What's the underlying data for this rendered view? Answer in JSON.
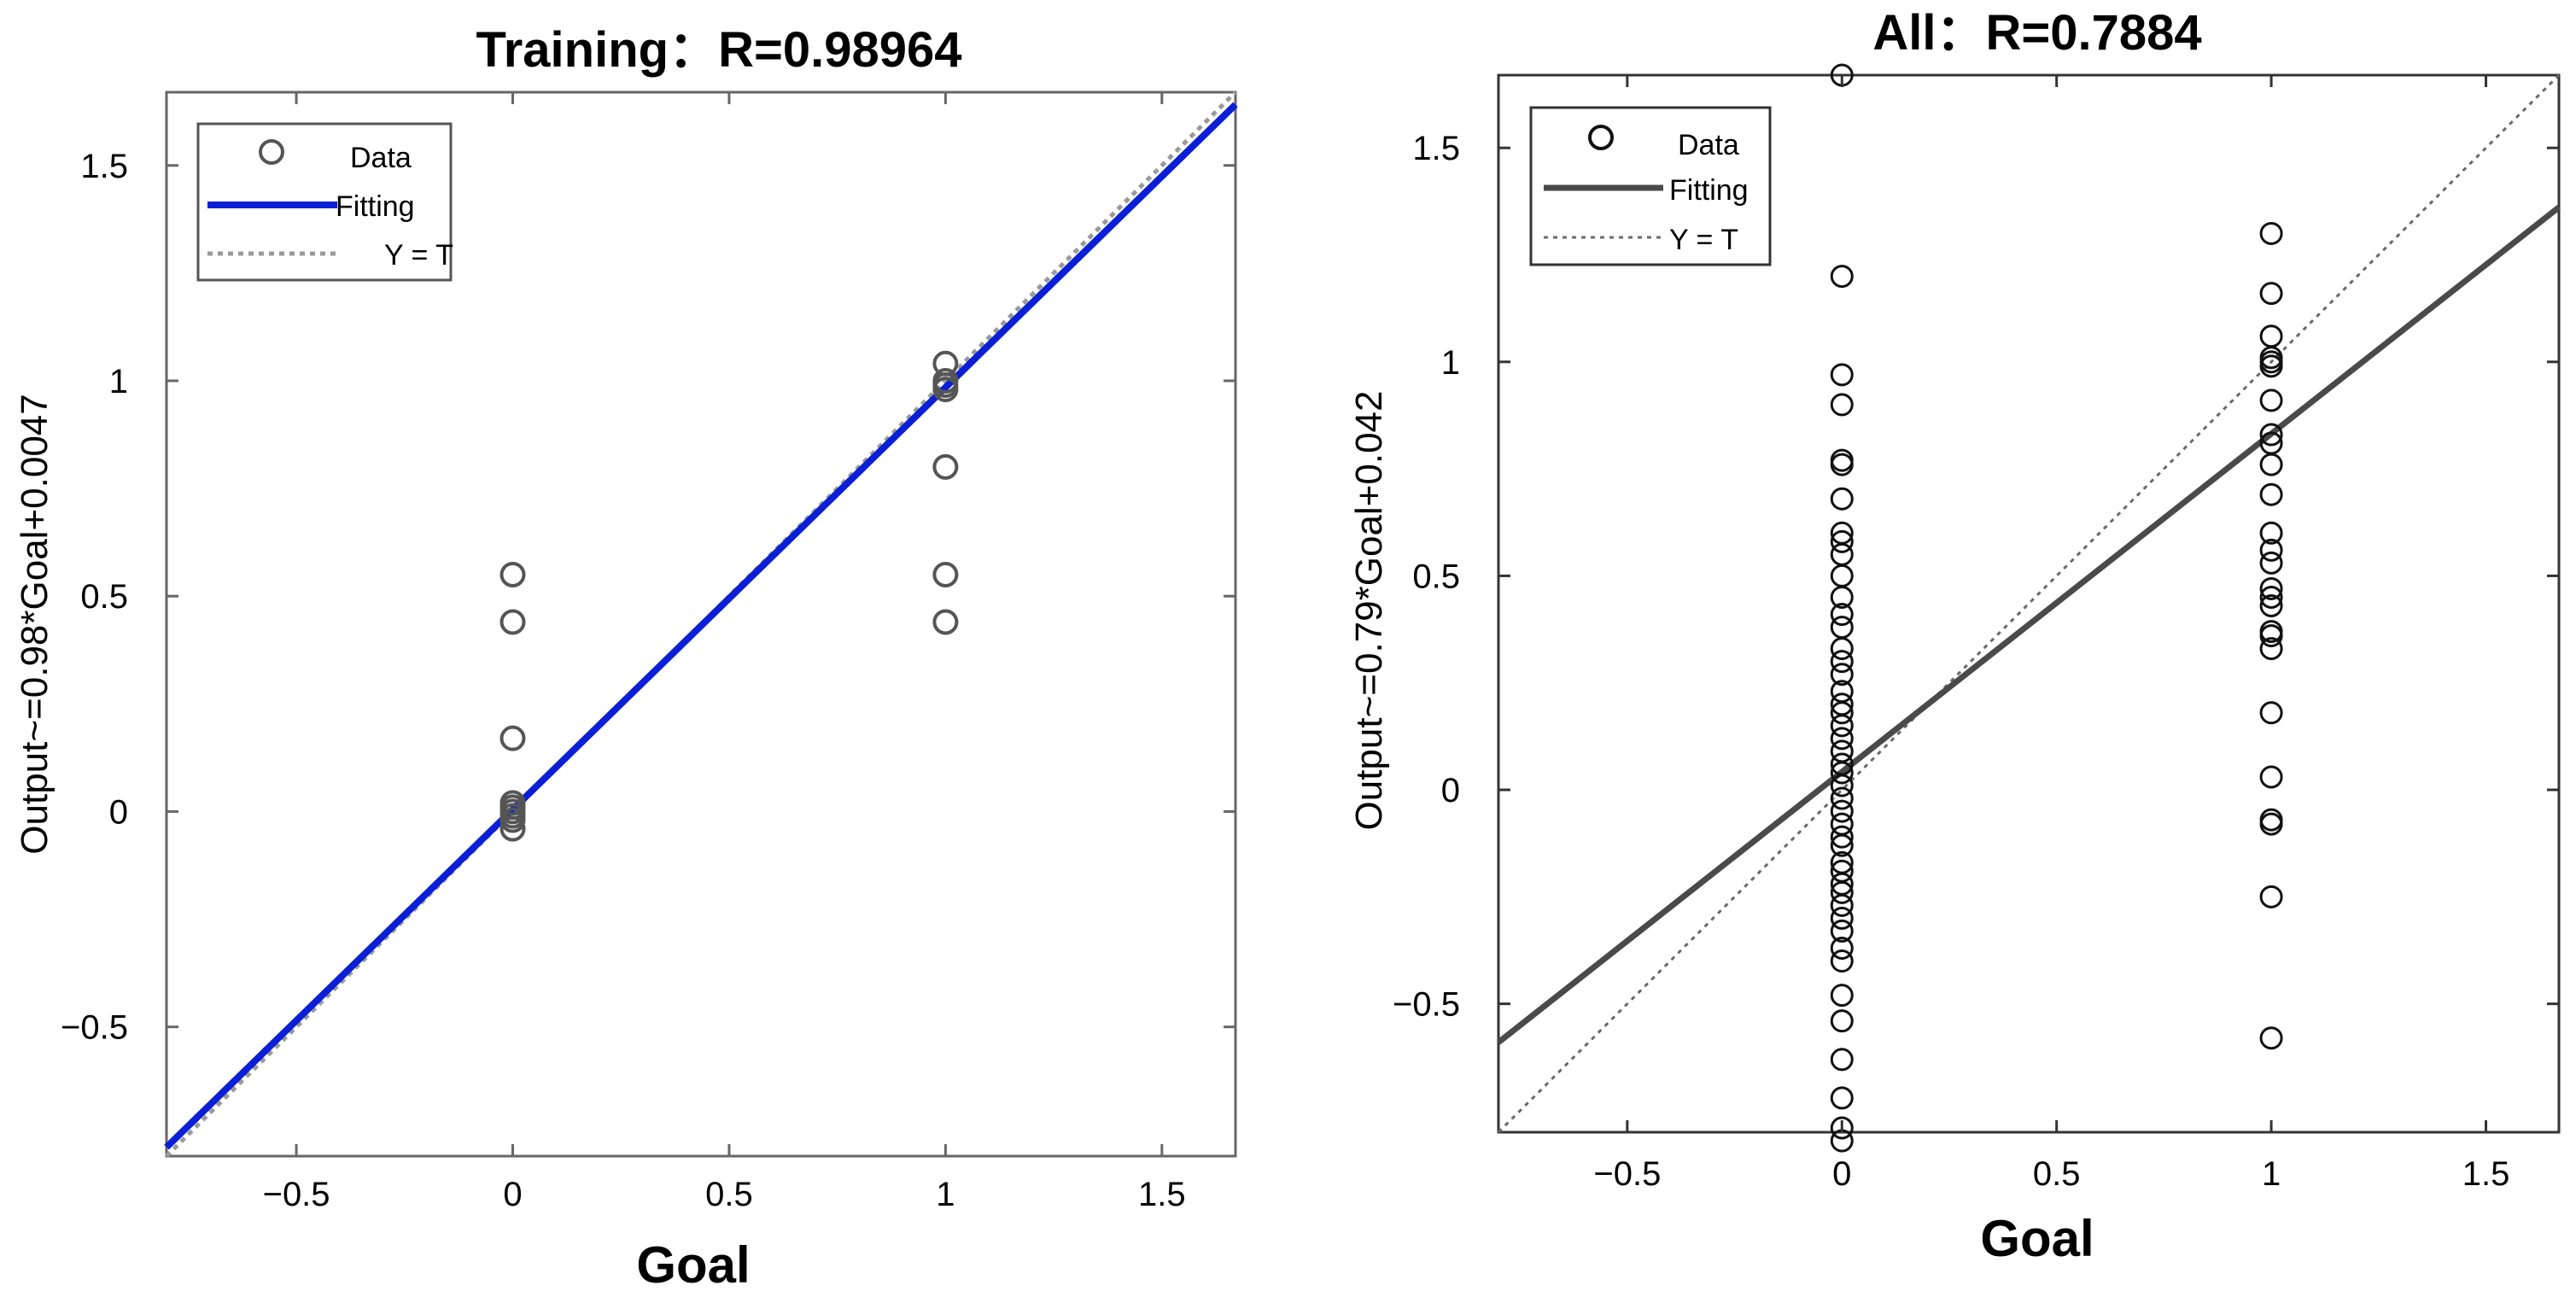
{
  "charts": [
    {
      "chart_data": {
        "type": "scatter",
        "title": "Training：R=0.98964",
        "xlabel": "Goal",
        "ylabel": "Output~=0.98*Goal+0.0047",
        "xlim": [
          -0.8,
          1.67
        ],
        "ylim": [
          -0.8,
          1.67
        ],
        "xticks": [
          -0.5,
          0,
          0.5,
          1,
          1.5
        ],
        "yticks": [
          -0.5,
          0,
          0.5,
          1,
          1.5
        ],
        "xtick_labels": [
          "−0.5",
          "0",
          "0.5",
          "1",
          "1.5"
        ],
        "ytick_labels": [
          "−0.5",
          "0",
          "0.5",
          "1",
          "1.5"
        ],
        "legend_position": "top-left",
        "series": [
          {
            "name": "Data",
            "kind": "scatter",
            "points": [
              [
                0,
                0.55
              ],
              [
                0,
                0.44
              ],
              [
                0,
                0.17
              ],
              [
                0,
                0.02
              ],
              [
                0,
                0.01
              ],
              [
                0,
                0.0
              ],
              [
                0,
                -0.01
              ],
              [
                0,
                -0.02
              ],
              [
                0,
                -0.04
              ],
              [
                1,
                1.04
              ],
              [
                1,
                1.0
              ],
              [
                1,
                0.99
              ],
              [
                1,
                0.98
              ],
              [
                1,
                0.8
              ],
              [
                1,
                0.55
              ],
              [
                1,
                0.44
              ]
            ]
          },
          {
            "name": "Fitting",
            "kind": "line",
            "slope": 0.98,
            "intercept": 0.0047
          },
          {
            "name": "Y = T",
            "kind": "line",
            "slope": 1,
            "intercept": 0
          }
        ]
      },
      "colors": {
        "data": "#555555",
        "fit": "#0a1fd6",
        "ref": "#9a9a9a",
        "axes": "#666666"
      }
    },
    {
      "chart_data": {
        "type": "scatter",
        "title": "All：R=0.7884",
        "xlabel": "Goal",
        "ylabel": "Output~=0.79*Goal+0.042",
        "xlim": [
          -0.8,
          1.67
        ],
        "ylim": [
          -0.8,
          1.67
        ],
        "xticks": [
          -0.5,
          0,
          0.5,
          1,
          1.5
        ],
        "yticks": [
          -0.5,
          0,
          0.5,
          1,
          1.5
        ],
        "xtick_labels": [
          "−0.5",
          "0",
          "0.5",
          "1",
          "1.5"
        ],
        "ytick_labels": [
          "−0.5",
          "0",
          "0.5",
          "1",
          "1.5"
        ],
        "legend_position": "top-left",
        "series": [
          {
            "name": "Data",
            "kind": "scatter",
            "points": [
              [
                0,
                1.67
              ],
              [
                0,
                1.2
              ],
              [
                0,
                0.97
              ],
              [
                0,
                0.9
              ],
              [
                0,
                0.77
              ],
              [
                0,
                0.76
              ],
              [
                0,
                0.68
              ],
              [
                0,
                0.6
              ],
              [
                0,
                0.58
              ],
              [
                0,
                0.55
              ],
              [
                0,
                0.5
              ],
              [
                0,
                0.45
              ],
              [
                0,
                0.41
              ],
              [
                0,
                0.38
              ],
              [
                0,
                0.33
              ],
              [
                0,
                0.3
              ],
              [
                0,
                0.27
              ],
              [
                0,
                0.23
              ],
              [
                0,
                0.2
              ],
              [
                0,
                0.18
              ],
              [
                0,
                0.15
              ],
              [
                0,
                0.12
              ],
              [
                0,
                0.09
              ],
              [
                0,
                0.06
              ],
              [
                0,
                0.04
              ],
              [
                0,
                0.01
              ],
              [
                0,
                -0.02
              ],
              [
                0,
                -0.05
              ],
              [
                0,
                -0.08
              ],
              [
                0,
                -0.11
              ],
              [
                0,
                -0.13
              ],
              [
                0,
                -0.17
              ],
              [
                0,
                -0.19
              ],
              [
                0,
                -0.22
              ],
              [
                0,
                -0.24
              ],
              [
                0,
                -0.27
              ],
              [
                0,
                -0.3
              ],
              [
                0,
                -0.33
              ],
              [
                0,
                -0.37
              ],
              [
                0,
                -0.4
              ],
              [
                0,
                -0.48
              ],
              [
                0,
                -0.54
              ],
              [
                0,
                -0.63
              ],
              [
                0,
                -0.72
              ],
              [
                0,
                -0.79
              ],
              [
                0,
                -0.82
              ],
              [
                1,
                1.3
              ],
              [
                1,
                1.16
              ],
              [
                1,
                1.06
              ],
              [
                1,
                1.01
              ],
              [
                1,
                1.0
              ],
              [
                1,
                0.99
              ],
              [
                1,
                0.91
              ],
              [
                1,
                0.83
              ],
              [
                1,
                0.81
              ],
              [
                1,
                0.76
              ],
              [
                1,
                0.69
              ],
              [
                1,
                0.6
              ],
              [
                1,
                0.56
              ],
              [
                1,
                0.53
              ],
              [
                1,
                0.47
              ],
              [
                1,
                0.45
              ],
              [
                1,
                0.43
              ],
              [
                1,
                0.37
              ],
              [
                1,
                0.36
              ],
              [
                1,
                0.33
              ],
              [
                1,
                0.18
              ],
              [
                1,
                0.03
              ],
              [
                1,
                -0.07
              ],
              [
                1,
                -0.08
              ],
              [
                1,
                -0.25
              ],
              [
                1,
                -0.58
              ]
            ]
          },
          {
            "name": "Fitting",
            "kind": "line",
            "slope": 0.79,
            "intercept": 0.042
          },
          {
            "name": "Y = T",
            "kind": "line",
            "slope": 1,
            "intercept": 0
          }
        ]
      },
      "colors": {
        "data": "#111111",
        "fit": "#4a4a4a",
        "ref": "#6a6a6a",
        "axes": "#333333"
      }
    }
  ]
}
